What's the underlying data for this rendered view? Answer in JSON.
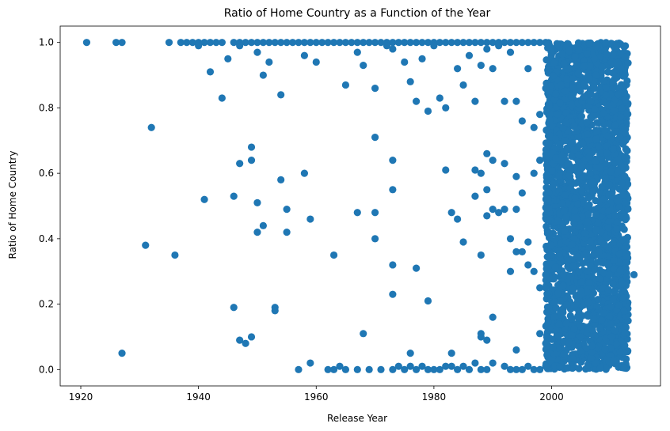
{
  "chart_data": {
    "type": "scatter",
    "title": "Ratio of Home Country as a Function of the Year",
    "xlabel": "Release Year",
    "ylabel": "Ratio of Home Country",
    "xlim": [
      1916.5,
      2018.5
    ],
    "ylim": [
      -0.05,
      1.05
    ],
    "xticks": [
      1920,
      1940,
      1960,
      1980,
      2000
    ],
    "yticks": [
      0.0,
      0.2,
      0.4,
      0.6,
      0.8,
      1.0
    ],
    "xtick_labels": [
      "1920",
      "1940",
      "1960",
      "1980",
      "2000"
    ],
    "ytick_labels": [
      "0.0",
      "0.2",
      "0.4",
      "0.6",
      "0.8",
      "1.0"
    ],
    "grid": false,
    "legend": "none",
    "marker_color": "#1f77b4",
    "series": [
      {
        "x": [
          1921,
          1926,
          1927,
          1935,
          1937,
          1938,
          1939,
          1940,
          1941,
          1942,
          1943,
          1944,
          1946,
          1947,
          1948,
          1949,
          1950,
          1951,
          1952,
          1953,
          1954,
          1955,
          1956,
          1957,
          1958,
          1959,
          1960,
          1961,
          1962,
          1963,
          1964,
          1965,
          1966,
          1967,
          1968,
          1969,
          1970,
          1971,
          1972,
          1973,
          1974,
          1975,
          1976,
          1977,
          1978,
          1979,
          1980,
          1981,
          1982,
          1983,
          1984,
          1985,
          1986,
          1987,
          1988,
          1989,
          1990,
          1991,
          1992,
          1993,
          1994,
          1995,
          1996,
          1997,
          1998,
          1999,
          1940,
          1942,
          1944,
          1945,
          1947,
          1950,
          1951,
          1952,
          1954,
          1958,
          1960,
          1965,
          1967,
          1968,
          1970,
          1972,
          1973,
          1975,
          1976,
          1977,
          1978,
          1979,
          1980,
          1981,
          1982,
          1984,
          1985,
          1986,
          1987,
          1988,
          1989,
          1990,
          1991,
          1992,
          1993,
          1994,
          1995,
          1996,
          1997,
          1998,
          1999,
          1927,
          1931,
          1932,
          1936,
          1941,
          1946,
          1946,
          1947,
          1947,
          1948,
          1949,
          1949,
          1949,
          1950,
          1950,
          1951,
          1953,
          1953,
          1954,
          1955,
          1955,
          1958,
          1959,
          1963,
          1967,
          1968,
          1970,
          1970,
          1970,
          1973,
          1973,
          1973,
          1973,
          1977,
          1979,
          1982,
          1983,
          1984,
          1985,
          1987,
          1987,
          1988,
          1988,
          1988,
          1989,
          1989,
          1989,
          1990,
          1990,
          1990,
          1991,
          1992,
          1992,
          1993,
          1993,
          1994,
          1994,
          1994,
          1995,
          1995,
          1996,
          1996,
          1997,
          1997,
          1998,
          1998,
          1999,
          1999,
          1957,
          1959,
          1962,
          1963,
          1964,
          1965,
          1967,
          1969,
          1971,
          1973,
          1974,
          1975,
          1976,
          1977,
          1978,
          1979,
          1980,
          1981,
          1982,
          1983,
          1984,
          1985,
          1986,
          1987,
          1988,
          1989,
          1992,
          1993,
          1994,
          1995,
          1996,
          1997,
          1998,
          1999,
          1976,
          1983,
          1988,
          1989,
          1990,
          1994,
          1998,
          1999,
          2014
        ],
        "y": [
          1.0,
          1.0,
          1.0,
          1.0,
          1.0,
          1.0,
          1.0,
          1.0,
          1.0,
          1.0,
          1.0,
          1.0,
          1.0,
          1.0,
          1.0,
          1.0,
          1.0,
          1.0,
          1.0,
          1.0,
          1.0,
          1.0,
          1.0,
          1.0,
          1.0,
          1.0,
          1.0,
          1.0,
          1.0,
          1.0,
          1.0,
          1.0,
          1.0,
          1.0,
          1.0,
          1.0,
          1.0,
          1.0,
          1.0,
          1.0,
          1.0,
          1.0,
          1.0,
          1.0,
          1.0,
          1.0,
          1.0,
          1.0,
          1.0,
          1.0,
          1.0,
          1.0,
          1.0,
          1.0,
          1.0,
          1.0,
          1.0,
          1.0,
          1.0,
          1.0,
          1.0,
          1.0,
          1.0,
          1.0,
          1.0,
          1.0,
          0.99,
          0.91,
          0.83,
          0.95,
          0.99,
          0.97,
          0.9,
          0.94,
          0.84,
          0.96,
          0.94,
          0.87,
          0.97,
          0.93,
          0.86,
          0.99,
          0.98,
          0.94,
          0.88,
          0.82,
          0.95,
          0.79,
          0.99,
          0.83,
          0.8,
          0.92,
          0.87,
          0.96,
          0.82,
          0.93,
          0.98,
          0.92,
          0.99,
          0.82,
          0.97,
          0.82,
          0.76,
          0.92,
          0.74,
          0.78,
          0.86,
          0.05,
          0.38,
          0.74,
          0.35,
          0.52,
          0.53,
          0.19,
          0.63,
          0.09,
          0.08,
          0.68,
          0.64,
          0.1,
          0.51,
          0.42,
          0.44,
          0.19,
          0.18,
          0.58,
          0.49,
          0.42,
          0.6,
          0.46,
          0.35,
          0.48,
          0.11,
          0.71,
          0.48,
          0.4,
          0.64,
          0.55,
          0.32,
          0.23,
          0.31,
          0.21,
          0.61,
          0.48,
          0.46,
          0.39,
          0.61,
          0.53,
          0.35,
          0.1,
          0.6,
          0.66,
          0.55,
          0.47,
          0.64,
          0.49,
          0.16,
          0.48,
          0.63,
          0.49,
          0.4,
          0.3,
          0.59,
          0.36,
          0.49,
          0.36,
          0.54,
          0.39,
          0.32,
          0.6,
          0.3,
          0.25,
          0.64,
          0.29,
          0.25,
          0.0,
          0.02,
          0.0,
          0.0,
          0.01,
          0.0,
          0.0,
          0.0,
          0.0,
          0.0,
          0.01,
          0.0,
          0.01,
          0.0,
          0.01,
          0.0,
          0.0,
          0.0,
          0.01,
          0.01,
          0.0,
          0.01,
          0.0,
          0.02,
          0.0,
          0.0,
          0.01,
          0.0,
          0.0,
          0.0,
          0.01,
          0.0,
          0.0,
          0.01,
          0.05,
          0.05,
          0.11,
          0.09,
          0.02,
          0.06,
          0.11,
          0.08,
          0.29
        ]
      }
    ]
  }
}
